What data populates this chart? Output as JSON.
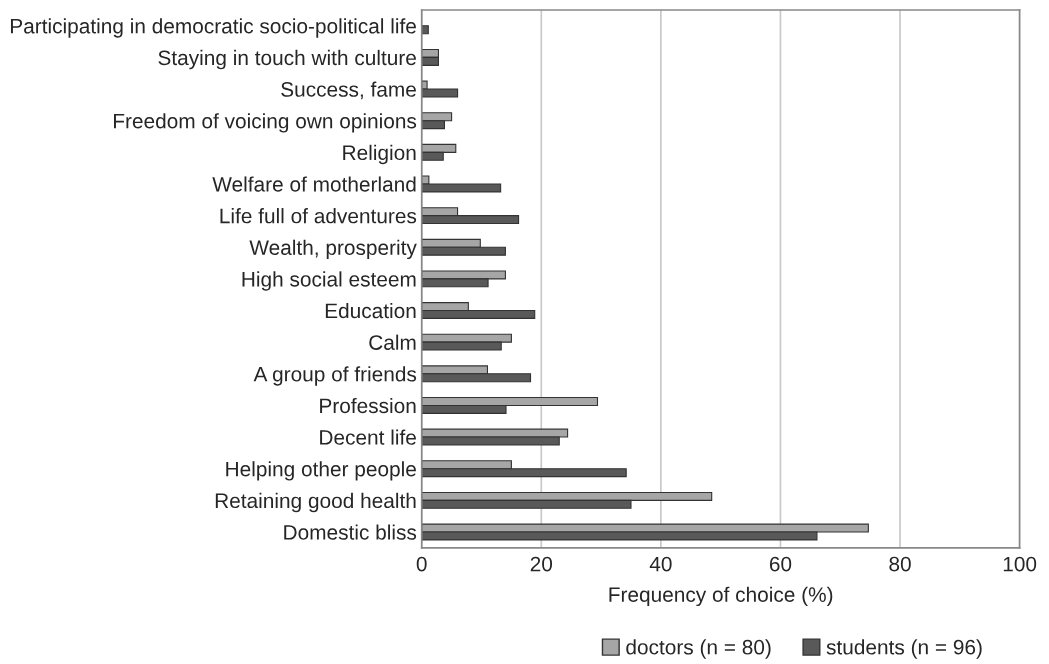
{
  "chart_data": {
    "type": "bar",
    "orientation": "horizontal",
    "categories": [
      "Participating in democratic socio-political life",
      "Staying in touch with culture",
      "Success, fame",
      "Freedom of voicing own opinions",
      "Religion",
      "Welfare of motherland",
      "Life full of adventures",
      "Wealth, prosperity",
      "High social esteem",
      "Education",
      "Calm",
      "A group of friends",
      "Profession",
      "Decent life",
      "Helping other people",
      "Retaining good health",
      "Domestic bliss"
    ],
    "series": [
      {
        "name": "doctors (n = 80)",
        "color": "#a6a6a6",
        "values": [
          null,
          2.8,
          0.9,
          5.0,
          5.7,
          1.2,
          6.0,
          9.8,
          14.0,
          7.8,
          15.0,
          11.0,
          29.4,
          24.4,
          15.0,
          48.5,
          74.7
        ]
      },
      {
        "name": "students (n = 96)",
        "color": "#595959",
        "values": [
          1.1,
          2.8,
          6.0,
          3.8,
          3.6,
          13.2,
          16.2,
          14.0,
          11.1,
          18.9,
          13.3,
          18.2,
          14.1,
          23.0,
          34.2,
          35.0,
          66.1
        ]
      }
    ],
    "xlabel": "Frequency of choice (%)",
    "xlim": [
      0,
      100
    ],
    "xticks": [
      0,
      20,
      40,
      60,
      80,
      100
    ],
    "grid": "x",
    "legend": "bottom"
  }
}
